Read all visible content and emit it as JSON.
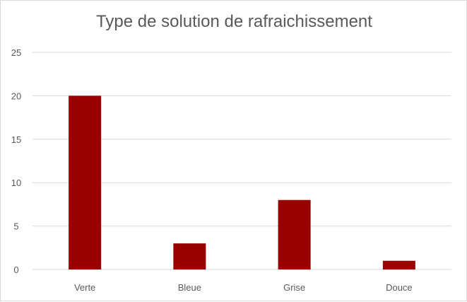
{
  "chart_data": {
    "type": "bar",
    "title": "Type de solution de rafraichissement",
    "categories": [
      "Verte",
      "Bleue",
      "Grise",
      "Douce"
    ],
    "values": [
      20,
      3,
      8,
      1
    ],
    "ylim": [
      0,
      25
    ],
    "yticks": [
      0,
      5,
      10,
      15,
      20,
      25
    ],
    "grid": true,
    "legend": "none",
    "bar_color": "#990000",
    "grid_color": "#d9d9d9"
  }
}
